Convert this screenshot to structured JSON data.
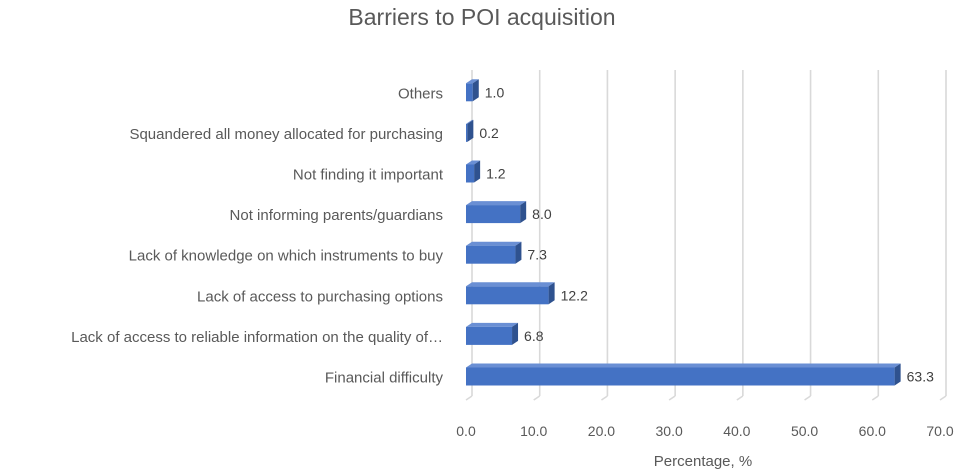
{
  "chart_data": {
    "type": "bar",
    "orientation": "horizontal",
    "title": "Barriers to POI acquisition",
    "xlabel": "Percentage, %",
    "ylabel": "",
    "xlim": [
      0,
      70
    ],
    "x_ticks": [
      "0.0",
      "10.0",
      "20.0",
      "30.0",
      "40.0",
      "50.0",
      "60.0",
      "70.0"
    ],
    "x_tick_values": [
      0,
      10,
      20,
      30,
      40,
      50,
      60,
      70
    ],
    "categories": [
      "Others",
      "Squandered all money allocated for purchasing",
      "Not finding it important",
      "Not informing parents/guardians",
      "Lack of knowledge on which instruments to buy",
      "Lack of access to purchasing options",
      "Lack of access to reliable information on the quality of…",
      "Financial difficulty"
    ],
    "values": [
      1.0,
      0.2,
      1.2,
      8.0,
      7.3,
      12.2,
      6.8,
      63.3
    ],
    "value_labels": [
      "1.0",
      "0.2",
      "1.2",
      "8.0",
      "7.3",
      "12.2",
      "6.8",
      "63.3"
    ],
    "grid": "vertical",
    "legend": "none",
    "bar_color": "#4472C4",
    "bar_side_color": "#2F528F",
    "bar_top_color": "#6A8FD4"
  }
}
